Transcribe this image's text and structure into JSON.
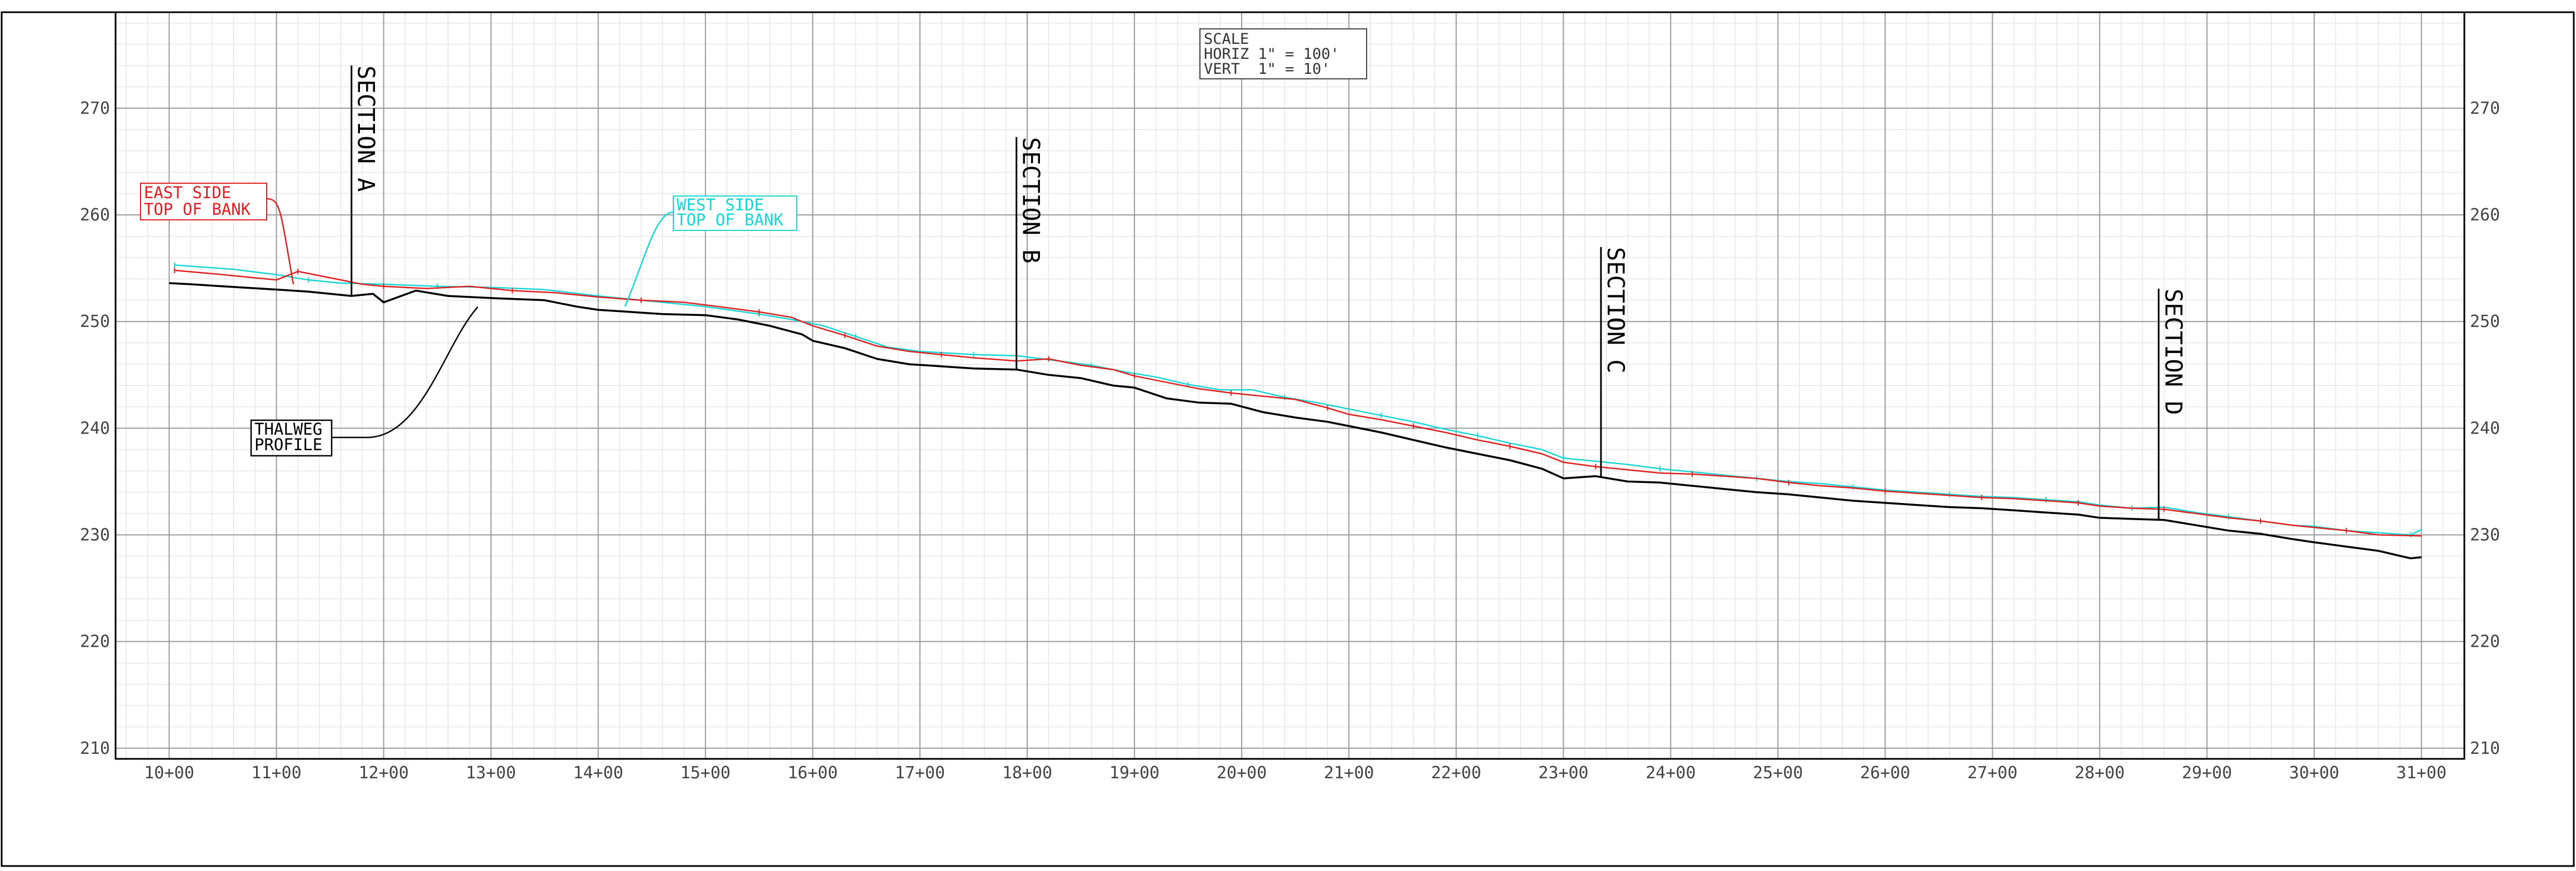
{
  "colors": {
    "thalweg": "#000000",
    "east_bank": "#e02020",
    "west_bank": "#19d6d6",
    "major_grid": "#9a9a9a",
    "minor_grid": "#dcdcdc"
  },
  "scale_box": {
    "line1": "SCALE",
    "line2": "HORIZ 1\" = 100'",
    "line3": "VERT  1\" = 10'"
  },
  "sections": [
    {
      "name": "SECTION A",
      "station": 11.7
    },
    {
      "name": "SECTION B",
      "station": 17.9
    },
    {
      "name": "SECTION C",
      "station": 23.35
    },
    {
      "name": "SECTION D",
      "station": 28.55
    }
  ],
  "labels": {
    "east": {
      "line1": "EAST SIDE",
      "line2": "TOP OF BANK"
    },
    "west": {
      "line1": "WEST SIDE",
      "line2": "TOP OF BANK"
    },
    "thalweg": {
      "line1": "THALWEG",
      "line2": "PROFILE"
    }
  },
  "chart_data": {
    "type": "line",
    "title": "",
    "xlabel": "",
    "ylabel": "",
    "x_unit": "station (100 ft)",
    "xlim": [
      9.5,
      31.4
    ],
    "ylim": [
      209,
      279
    ],
    "x_ticks": [
      "10+00",
      "11+00",
      "12+00",
      "13+00",
      "14+00",
      "15+00",
      "16+00",
      "17+00",
      "18+00",
      "19+00",
      "20+00",
      "21+00",
      "22+00",
      "23+00",
      "24+00",
      "25+00",
      "26+00",
      "27+00",
      "28+00",
      "29+00",
      "30+00",
      "31+00"
    ],
    "y_ticks": [
      "210",
      "220",
      "230",
      "240",
      "250",
      "260",
      "270"
    ],
    "grid": true,
    "series": [
      {
        "name": "THALWEG PROFILE",
        "x": [
          10.0,
          10.2,
          10.5,
          11.0,
          11.3,
          11.7,
          11.9,
          12.0,
          12.3,
          12.6,
          13.0,
          13.5,
          13.8,
          14.0,
          14.3,
          14.6,
          15.0,
          15.3,
          15.6,
          15.9,
          16.0,
          16.3,
          16.6,
          16.9,
          17.2,
          17.5,
          17.9,
          18.2,
          18.5,
          18.8,
          19.0,
          19.3,
          19.6,
          19.9,
          20.2,
          20.5,
          20.8,
          21.0,
          21.3,
          21.6,
          21.9,
          22.2,
          22.5,
          22.8,
          23.0,
          23.3,
          23.6,
          23.9,
          24.2,
          24.5,
          24.8,
          25.1,
          25.4,
          25.7,
          26.0,
          26.3,
          26.6,
          26.9,
          27.2,
          27.5,
          27.8,
          28.0,
          28.3,
          28.6,
          28.9,
          29.2,
          29.5,
          29.8,
          30.0,
          30.3,
          30.6,
          30.9,
          31.0
        ],
        "values": [
          253.6,
          253.5,
          253.3,
          253.0,
          252.8,
          252.4,
          252.6,
          251.8,
          252.9,
          252.4,
          252.2,
          252.0,
          251.4,
          251.1,
          250.9,
          250.7,
          250.6,
          250.2,
          249.6,
          248.8,
          248.2,
          247.5,
          246.5,
          246.0,
          245.8,
          245.6,
          245.5,
          245.0,
          244.7,
          244.0,
          243.8,
          242.8,
          242.4,
          242.3,
          241.5,
          241.0,
          240.6,
          240.2,
          239.6,
          238.9,
          238.2,
          237.6,
          237.0,
          236.2,
          235.3,
          235.5,
          235.0,
          234.9,
          234.6,
          234.3,
          234.0,
          233.8,
          233.5,
          233.2,
          233.0,
          232.8,
          232.6,
          232.5,
          232.3,
          232.1,
          231.9,
          231.6,
          231.5,
          231.4,
          230.9,
          230.4,
          230.1,
          229.6,
          229.3,
          228.9,
          228.5,
          227.8,
          227.9
        ]
      },
      {
        "name": "EAST SIDE TOP OF BANK",
        "x": [
          10.05,
          10.5,
          11.0,
          11.2,
          11.5,
          11.8,
          12.0,
          12.4,
          12.8,
          13.2,
          13.6,
          14.0,
          14.4,
          14.8,
          15.2,
          15.5,
          15.8,
          16.0,
          16.3,
          16.6,
          16.9,
          17.2,
          17.5,
          17.9,
          18.2,
          18.5,
          18.8,
          19.0,
          19.3,
          19.6,
          19.9,
          20.2,
          20.5,
          20.8,
          21.0,
          21.3,
          21.6,
          21.9,
          22.2,
          22.5,
          22.8,
          23.0,
          23.3,
          23.6,
          23.9,
          24.2,
          24.5,
          24.8,
          25.1,
          25.4,
          25.7,
          26.0,
          26.3,
          26.6,
          26.9,
          27.2,
          27.5,
          27.8,
          28.0,
          28.3,
          28.6,
          28.9,
          29.2,
          29.5,
          29.8,
          30.0,
          30.3,
          30.6,
          31.0
        ],
        "values": [
          254.8,
          254.4,
          253.9,
          254.7,
          254.1,
          253.5,
          253.3,
          253.1,
          253.3,
          252.9,
          252.7,
          252.3,
          252.0,
          251.8,
          251.3,
          250.9,
          250.4,
          249.6,
          248.7,
          247.7,
          247.2,
          246.9,
          246.6,
          246.3,
          246.5,
          245.9,
          245.5,
          244.9,
          244.3,
          243.7,
          243.3,
          243.0,
          242.7,
          241.9,
          241.3,
          240.8,
          240.2,
          239.6,
          238.9,
          238.3,
          237.6,
          236.8,
          236.4,
          236.1,
          235.8,
          235.7,
          235.5,
          235.3,
          234.9,
          234.6,
          234.4,
          234.1,
          233.9,
          233.7,
          233.5,
          233.4,
          233.2,
          233.0,
          232.7,
          232.5,
          232.4,
          232.0,
          231.6,
          231.3,
          230.9,
          230.7,
          230.4,
          230.0,
          229.9
        ]
      },
      {
        "name": "WEST SIDE TOP OF BANK",
        "x": [
          10.05,
          10.6,
          11.0,
          11.3,
          11.6,
          12.0,
          12.5,
          13.0,
          13.5,
          14.0,
          14.5,
          15.0,
          15.5,
          15.8,
          16.1,
          16.4,
          16.7,
          17.0,
          17.5,
          17.9,
          18.3,
          18.6,
          18.9,
          19.2,
          19.5,
          19.8,
          20.1,
          20.4,
          20.7,
          21.0,
          21.3,
          21.6,
          21.9,
          22.2,
          22.5,
          22.8,
          23.0,
          23.3,
          23.6,
          23.9,
          24.2,
          24.5,
          24.8,
          25.1,
          25.4,
          25.7,
          26.0,
          26.3,
          26.6,
          26.9,
          27.2,
          27.5,
          27.8,
          28.0,
          28.3,
          28.6,
          28.9,
          29.2,
          29.5,
          29.8,
          30.0,
          30.3,
          30.6,
          30.9,
          31.0
        ],
        "values": [
          255.3,
          254.9,
          254.4,
          253.9,
          253.6,
          253.5,
          253.3,
          253.2,
          253.0,
          252.4,
          251.9,
          251.4,
          250.7,
          250.2,
          249.6,
          248.6,
          247.6,
          247.2,
          246.9,
          246.8,
          246.3,
          245.9,
          245.3,
          244.8,
          244.1,
          243.6,
          243.6,
          242.9,
          242.4,
          241.8,
          241.2,
          240.6,
          239.9,
          239.3,
          238.6,
          238.0,
          237.2,
          236.9,
          236.6,
          236.2,
          235.9,
          235.6,
          235.3,
          235.0,
          234.8,
          234.5,
          234.2,
          234.0,
          233.8,
          233.6,
          233.5,
          233.3,
          233.1,
          232.8,
          232.5,
          232.6,
          232.1,
          231.7,
          231.3,
          230.9,
          230.8,
          230.4,
          230.2,
          230.0,
          230.5
        ]
      }
    ]
  }
}
